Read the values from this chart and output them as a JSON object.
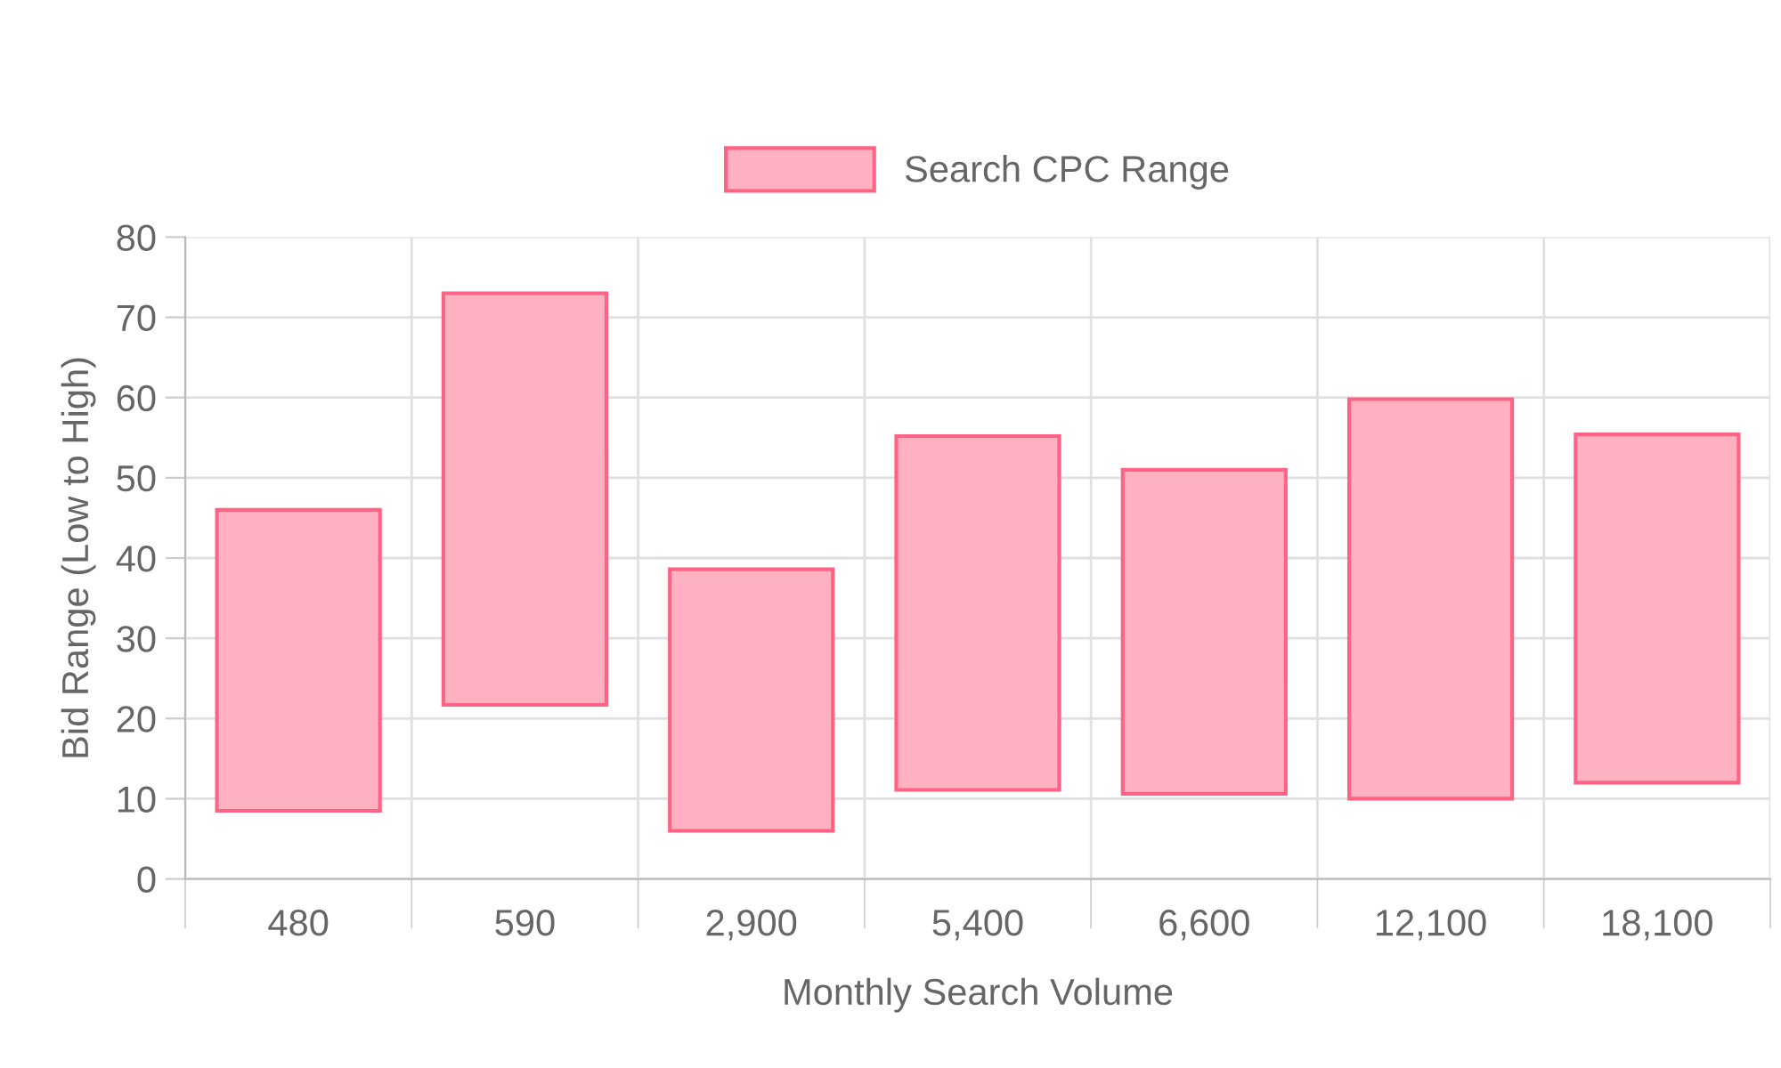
{
  "chart_data": {
    "type": "bar",
    "xlabel": "Monthly Search Volume",
    "ylabel": "Bid Range (Low to High)",
    "categories": [
      "480",
      "590",
      "2,900",
      "5,400",
      "6,600",
      "12,100",
      "18,100"
    ],
    "series": [
      {
        "name": "Search CPC Range",
        "color": "#ffb1c1",
        "base": [
          8.5,
          21.7,
          6,
          11.1,
          10.6,
          10,
          12
        ],
        "values": [
          37.5,
          51.3,
          32.6,
          44.1,
          40.4,
          49.8,
          43.4
        ]
      }
    ],
    "ylim": [
      0,
      80
    ],
    "yticks": [
      0,
      10,
      20,
      30,
      40,
      50,
      60,
      70,
      80
    ],
    "grid": true,
    "legend": "top"
  }
}
